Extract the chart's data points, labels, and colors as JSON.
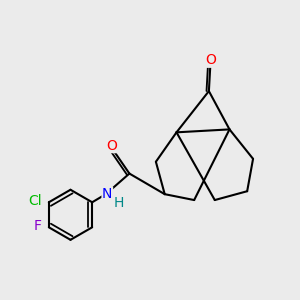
{
  "bg_color": "#ebebeb",
  "bond_color": "#000000",
  "bond_width": 1.5,
  "atom_colors": {
    "O": "#ff0000",
    "N": "#0000ff",
    "Cl": "#00bb00",
    "F": "#8800cc",
    "H": "#008888",
    "C": "#000000"
  },
  "font_size": 10,
  "fig_w": 3.0,
  "fig_h": 3.0,
  "dpi": 100
}
